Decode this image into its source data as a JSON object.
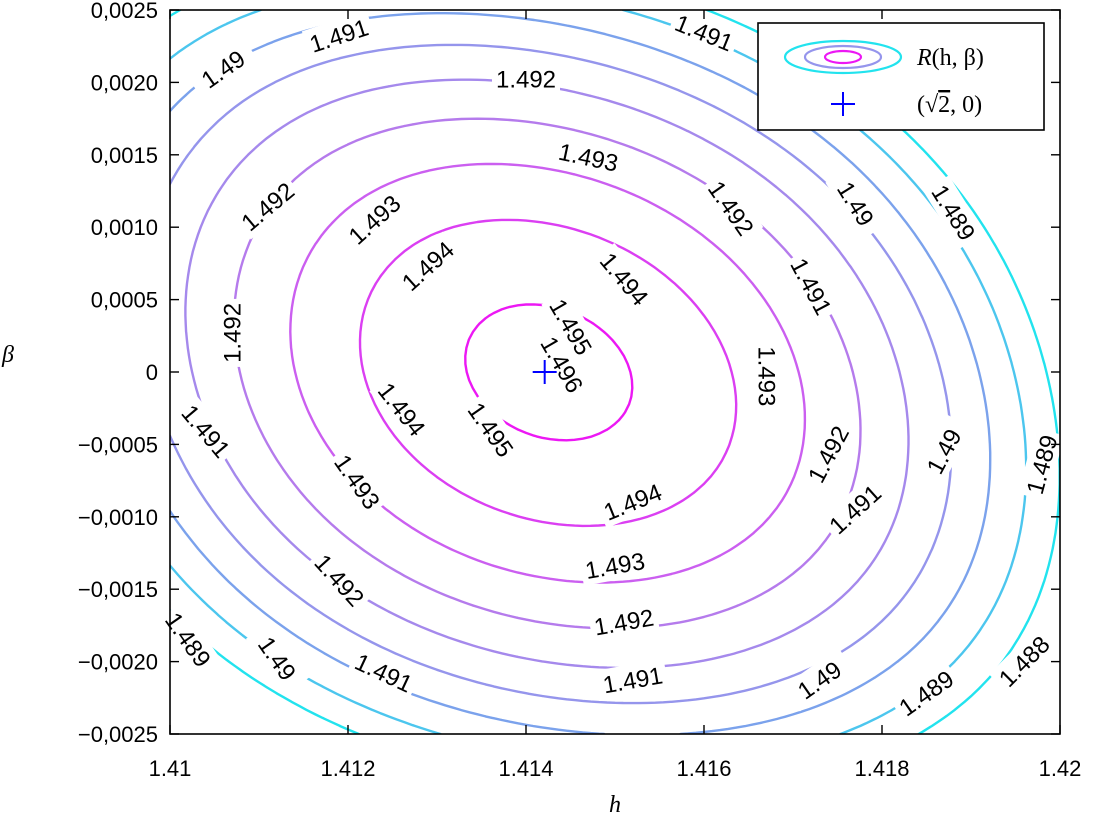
{
  "chart_data": {
    "type": "contour",
    "xlabel": "h",
    "ylabel": "β",
    "xlim": [
      1.41,
      1.42
    ],
    "ylim": [
      -0.0025,
      0.0025
    ],
    "x_ticks": [
      1.41,
      1.412,
      1.414,
      1.416,
      1.418,
      1.42
    ],
    "x_tick_labels": [
      "1.41",
      "1.412",
      "1.414",
      "1.416",
      "1.418",
      "1.42"
    ],
    "y_ticks": [
      0.0025,
      0.002,
      0.0015,
      0.001,
      0.0005,
      0,
      -0.0005,
      -0.001,
      -0.0015,
      -0.002,
      -0.0025
    ],
    "y_tick_labels": [
      "0,0025",
      "0,0020",
      "0,0015",
      "0,0010",
      "0,0005",
      "0",
      "−0,0005",
      "−0,0010",
      "−0,0015",
      "−0,0020",
      "−0,0025"
    ],
    "grid": false,
    "legend_placement": "top-right",
    "legend": [
      {
        "kind": "contour",
        "label_main": "R",
        "label_args": "(h, β)"
      },
      {
        "kind": "marker",
        "label_open": "(",
        "label_root": "2",
        "label_close": ", 0)"
      }
    ],
    "marker": {
      "x": 1.41421,
      "y": 0,
      "symbol": "+",
      "color": "#0000ff"
    },
    "levels": [
      {
        "value": 1.488,
        "color": "#22e3ee"
      },
      {
        "value": 1.489,
        "color": "#4cc6ee"
      },
      {
        "value": 1.49,
        "color": "#7ba2ec"
      },
      {
        "value": 1.491,
        "color": "#9595ec"
      },
      {
        "value": 1.492,
        "color": "#a589ec"
      },
      {
        "value": 1.493,
        "color": "#b57bec"
      },
      {
        "value": 1.494,
        "color": "#cb5ff0"
      },
      {
        "value": 1.495,
        "color": "#db3ff2"
      },
      {
        "value": 1.496,
        "color": "#ec18f4"
      }
    ],
    "contour_labels": [
      {
        "text": "1.49",
        "h": 1.4106,
        "beta": 0.00209,
        "angle": -35
      },
      {
        "text": "1.491",
        "h": 1.4119,
        "beta": 0.00232,
        "angle": -18
      },
      {
        "text": "1.492",
        "h": 1.414,
        "beta": 0.00202,
        "angle": 0
      },
      {
        "text": "1.491",
        "h": 1.416,
        "beta": 0.00234,
        "angle": 22
      },
      {
        "text": "1.493",
        "h": 1.4147,
        "beta": 0.00148,
        "angle": 12
      },
      {
        "text": "1.492",
        "h": 1.4111,
        "beta": 0.00114,
        "angle": -40
      },
      {
        "text": "1.493",
        "h": 1.4123,
        "beta": 0.00105,
        "angle": -42
      },
      {
        "text": "1.494",
        "h": 1.4129,
        "beta": 0.00073,
        "angle": -42
      },
      {
        "text": "1.492",
        "h": 1.4163,
        "beta": 0.00113,
        "angle": 55
      },
      {
        "text": "1.49",
        "h": 1.4177,
        "beta": 0.00116,
        "angle": 58
      },
      {
        "text": "1.489",
        "h": 1.4188,
        "beta": 0.0011,
        "angle": 58
      },
      {
        "text": "1.494",
        "h": 1.4151,
        "beta": 0.00064,
        "angle": 50
      },
      {
        "text": "1.491",
        "h": 1.4172,
        "beta": 0.00059,
        "angle": 62
      },
      {
        "text": "1.495",
        "h": 1.4145,
        "beta": 0.00031,
        "angle": 60
      },
      {
        "text": "1.496",
        "h": 1.4144,
        "beta": 5e-05,
        "angle": 60
      },
      {
        "text": "1.492",
        "h": 1.4107,
        "beta": 0.00027,
        "angle": -90
      },
      {
        "text": "1.494",
        "h": 1.4126,
        "beta": -0.00026,
        "angle": 52
      },
      {
        "text": "1.495",
        "h": 1.4136,
        "beta": -0.0004,
        "angle": 55
      },
      {
        "text": "1.493",
        "h": 1.4167,
        "beta": -3e-05,
        "angle": 90
      },
      {
        "text": "1.491",
        "h": 1.4104,
        "beta": -0.00041,
        "angle": 50
      },
      {
        "text": "1.493",
        "h": 1.4121,
        "beta": -0.00076,
        "angle": 55
      },
      {
        "text": "1.492",
        "h": 1.4174,
        "beta": -0.00057,
        "angle": -62
      },
      {
        "text": "1.49",
        "h": 1.4187,
        "beta": -0.00055,
        "angle": -62
      },
      {
        "text": "1.489",
        "h": 1.4198,
        "beta": -0.00064,
        "angle": -75
      },
      {
        "text": "1.494",
        "h": 1.4152,
        "beta": -0.0009,
        "angle": -22
      },
      {
        "text": "1.491",
        "h": 1.4177,
        "beta": -0.00095,
        "angle": -42
      },
      {
        "text": "1.493",
        "h": 1.415,
        "beta": -0.00134,
        "angle": -10
      },
      {
        "text": "1.492",
        "h": 1.4119,
        "beta": -0.00144,
        "angle": 48
      },
      {
        "text": "1.489",
        "h": 1.4102,
        "beta": -0.00185,
        "angle": 55
      },
      {
        "text": "1.49",
        "h": 1.4112,
        "beta": -0.00198,
        "angle": 55
      },
      {
        "text": "1.492",
        "h": 1.4151,
        "beta": -0.00173,
        "angle": -10
      },
      {
        "text": "1.491",
        "h": 1.4124,
        "beta": -0.00208,
        "angle": 25
      },
      {
        "text": "1.491",
        "h": 1.4152,
        "beta": -0.00213,
        "angle": -10
      },
      {
        "text": "1.49",
        "h": 1.4173,
        "beta": -0.00213,
        "angle": -35
      },
      {
        "text": "1.489",
        "h": 1.4185,
        "beta": -0.00222,
        "angle": -35
      },
      {
        "text": "1.488",
        "h": 1.4196,
        "beta": -0.002,
        "angle": -45
      }
    ]
  }
}
